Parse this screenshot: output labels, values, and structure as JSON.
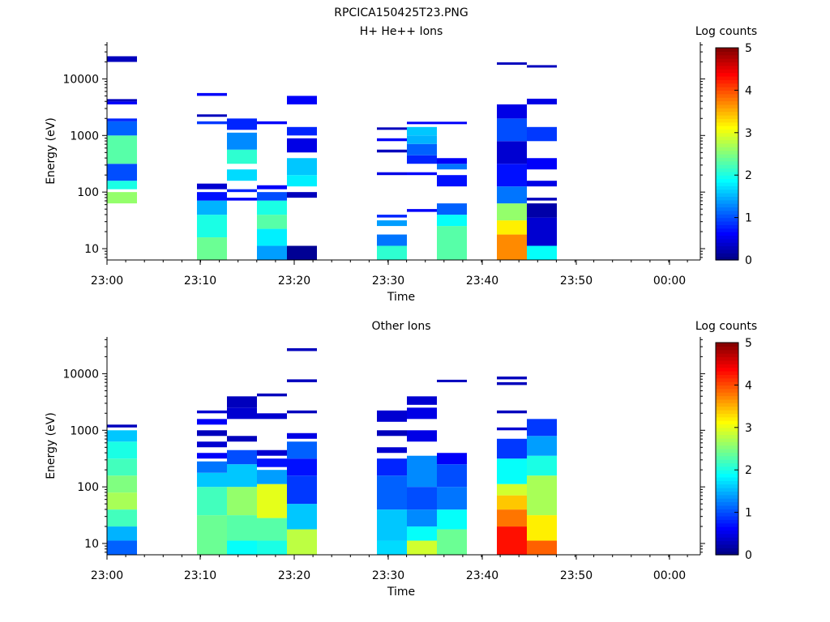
{
  "figure_title": "RPCICA150425T23.PNG",
  "chart_data": [
    {
      "type": "heatmap",
      "title": "H+ He++ Ions",
      "xlabel": "Time",
      "ylabel": "Energy (eV)",
      "x_ticks": [
        "23:00",
        "23:10",
        "23:20",
        "23:30",
        "23:40",
        "23:50",
        "00:00"
      ],
      "y_ticks": [
        "10",
        "100",
        "1000",
        "10000"
      ],
      "y_scale": "log",
      "colorbar": {
        "label": "Log counts",
        "range": [
          0,
          5
        ],
        "ticks": [
          "0",
          "1",
          "2",
          "3",
          "4",
          "5"
        ],
        "colormap": "jet"
      },
      "columns": [
        {
          "col": 0,
          "cells": [
            [
              1.8,
              2.0,
              2.6
            ],
            [
              2.05,
              2.2,
              2.0
            ],
            [
              2.2,
              2.5,
              1.0
            ],
            [
              2.5,
              3.0,
              2.3
            ],
            [
              3.0,
              3.25,
              1.1
            ],
            [
              3.25,
              3.3,
              0.8
            ],
            [
              3.55,
              3.6,
              0.6
            ],
            [
              3.6,
              3.6,
              0.3
            ],
            [
              4.3,
              4.4,
              0.3
            ]
          ]
        },
        {
          "col": 3,
          "cells": [
            [
              0.8,
              1.2,
              2.4
            ],
            [
              1.2,
              1.6,
              2.0
            ],
            [
              1.6,
              1.85,
              1.5
            ],
            [
              1.85,
              2.0,
              0.7
            ],
            [
              2.05,
              2.15,
              0.4
            ],
            [
              3.2,
              3.25,
              0.9
            ],
            [
              3.33,
              3.35,
              0.3
            ],
            [
              3.7,
              3.75,
              0.6
            ]
          ]
        },
        {
          "col": 4,
          "cells": [
            [
              1.85,
              1.9,
              0.6
            ],
            [
              2.0,
              2.05,
              0.8
            ],
            [
              2.2,
              2.4,
              1.7
            ],
            [
              2.5,
              2.75,
              2.1
            ],
            [
              2.75,
              3.05,
              1.3
            ],
            [
              3.1,
              3.3,
              0.8
            ]
          ]
        },
        {
          "col": 5,
          "cells": [
            [
              0.8,
              1.05,
              1.4
            ],
            [
              1.05,
              1.35,
              1.8
            ],
            [
              1.35,
              1.6,
              2.3
            ],
            [
              1.6,
              1.85,
              2.0
            ],
            [
              1.85,
              2.0,
              1.0
            ],
            [
              2.05,
              2.12,
              0.6
            ],
            [
              3.2,
              3.25,
              0.6
            ]
          ]
        },
        {
          "col": 6,
          "cells": [
            [
              0.8,
              1.05,
              0.1
            ],
            [
              1.9,
              2.0,
              0.3
            ],
            [
              2.1,
              2.3,
              1.8
            ],
            [
              2.3,
              2.6,
              1.6
            ],
            [
              2.7,
              2.95,
              0.5
            ],
            [
              3.0,
              3.15,
              0.8
            ],
            [
              3.55,
              3.7,
              0.6
            ]
          ]
        },
        {
          "col": 9,
          "cells": [
            [
              0.8,
              1.05,
              2.1
            ],
            [
              1.05,
              1.25,
              1.2
            ],
            [
              1.4,
              1.5,
              1.4
            ],
            [
              1.55,
              1.6,
              0.8
            ],
            [
              2.3,
              2.35,
              0.5
            ],
            [
              2.7,
              2.75,
              0.3
            ],
            [
              2.9,
              2.95,
              0.6
            ],
            [
              3.1,
              3.12,
              0.3
            ]
          ]
        },
        {
          "col": 10,
          "cells": [
            [
              1.65,
              1.7,
              0.6
            ],
            [
              2.3,
              2.35,
              0.6
            ],
            [
              2.5,
              2.65,
              0.8
            ],
            [
              2.65,
              2.85,
              1.1
            ],
            [
              2.85,
              3.0,
              1.5
            ],
            [
              3.0,
              3.15,
              1.6
            ],
            [
              3.2,
              3.22,
              0.6
            ]
          ]
        },
        {
          "col": 11,
          "cells": [
            [
              0.8,
              1.4,
              2.3
            ],
            [
              1.4,
              1.6,
              1.9
            ],
            [
              1.6,
              1.8,
              1.1
            ],
            [
              2.1,
              2.3,
              0.7
            ],
            [
              2.4,
              2.5,
              1.2
            ],
            [
              2.5,
              2.6,
              0.6
            ],
            [
              3.2,
              3.22,
              0.6
            ]
          ]
        },
        {
          "col": 13,
          "cells": [
            [
              0.8,
              1.25,
              3.7
            ],
            [
              1.25,
              1.5,
              3.2
            ],
            [
              1.5,
              1.8,
              2.6
            ],
            [
              1.8,
              2.1,
              1.2
            ],
            [
              2.1,
              2.5,
              0.7
            ],
            [
              2.5,
              2.9,
              0.4
            ],
            [
              2.9,
              3.3,
              1.0
            ],
            [
              3.3,
              3.55,
              0.5
            ],
            [
              4.25,
              4.27,
              0.3
            ]
          ]
        },
        {
          "col": 14,
          "cells": [
            [
              0.8,
              1.05,
              1.9
            ],
            [
              1.05,
              1.55,
              0.4
            ],
            [
              1.55,
              1.8,
              0.2
            ],
            [
              1.85,
              1.9,
              0.3
            ],
            [
              2.1,
              2.2,
              0.5
            ],
            [
              2.4,
              2.6,
              0.6
            ],
            [
              2.9,
              3.15,
              0.9
            ],
            [
              3.55,
              3.65,
              0.5
            ],
            [
              4.2,
              4.22,
              0.3
            ]
          ]
        }
      ]
    },
    {
      "type": "heatmap",
      "title": "Other Ions",
      "xlabel": "Time",
      "ylabel": "Energy (eV)",
      "x_ticks": [
        "23:00",
        "23:10",
        "23:20",
        "23:30",
        "23:40",
        "23:50",
        "00:00"
      ],
      "y_ticks": [
        "10",
        "100",
        "1000",
        "10000"
      ],
      "y_scale": "log",
      "colorbar": {
        "label": "Log counts",
        "range": [
          0,
          5
        ],
        "ticks": [
          "0",
          "1",
          "2",
          "3",
          "4",
          "5"
        ],
        "colormap": "jet"
      },
      "columns": [
        {
          "col": 0,
          "cells": [
            [
              0.8,
              1.05,
              1.1
            ],
            [
              1.05,
              1.3,
              1.5
            ],
            [
              1.3,
              1.6,
              2.2
            ],
            [
              1.6,
              1.9,
              2.7
            ],
            [
              1.9,
              2.2,
              2.5
            ],
            [
              2.2,
              2.5,
              2.2
            ],
            [
              2.5,
              2.8,
              2.0
            ],
            [
              2.8,
              3.0,
              1.6
            ],
            [
              3.05,
              3.1,
              0.3
            ]
          ]
        },
        {
          "col": 3,
          "cells": [
            [
              0.8,
              1.5,
              2.4
            ],
            [
              1.5,
              2.0,
              2.2
            ],
            [
              2.0,
              2.25,
              1.6
            ],
            [
              2.25,
              2.45,
              1.2
            ],
            [
              2.5,
              2.6,
              0.6
            ],
            [
              2.7,
              2.8,
              0.4
            ],
            [
              2.9,
              3.0,
              0.3
            ],
            [
              3.1,
              3.2,
              0.6
            ],
            [
              3.3,
              3.35,
              0.4
            ]
          ]
        },
        {
          "col": 4,
          "cells": [
            [
              0.8,
              1.05,
              1.9
            ],
            [
              1.05,
              1.5,
              2.3
            ],
            [
              1.5,
              2.0,
              2.6
            ],
            [
              2.0,
              2.4,
              1.6
            ],
            [
              2.4,
              2.65,
              1.0
            ],
            [
              2.8,
              2.9,
              0.3
            ],
            [
              3.2,
              3.4,
              0.4
            ],
            [
              3.4,
              3.6,
              0.3
            ]
          ]
        },
        {
          "col": 5,
          "cells": [
            [
              0.8,
              1.05,
              2.0
            ],
            [
              1.05,
              1.45,
              2.3
            ],
            [
              1.45,
              2.05,
              3.0
            ],
            [
              2.05,
              2.3,
              1.4
            ],
            [
              2.35,
              2.5,
              0.7
            ],
            [
              2.55,
              2.65,
              0.4
            ],
            [
              3.2,
              3.3,
              0.4
            ],
            [
              3.6,
              3.65,
              0.3
            ]
          ]
        },
        {
          "col": 6,
          "cells": [
            [
              0.8,
              1.25,
              2.8
            ],
            [
              1.25,
              1.7,
              1.6
            ],
            [
              1.7,
              2.2,
              0.9
            ],
            [
              2.2,
              2.5,
              0.7
            ],
            [
              2.5,
              2.8,
              1.1
            ],
            [
              2.85,
              2.95,
              0.5
            ],
            [
              3.3,
              3.35,
              0.3
            ],
            [
              3.85,
              3.9,
              0.3
            ],
            [
              4.4,
              4.45,
              0.3
            ]
          ]
        },
        {
          "col": 9,
          "cells": [
            [
              0.8,
              1.05,
              1.7
            ],
            [
              1.05,
              1.6,
              1.6
            ],
            [
              1.6,
              2.2,
              1.1
            ],
            [
              2.2,
              2.5,
              0.8
            ],
            [
              2.6,
              2.7,
              0.4
            ],
            [
              2.9,
              3.0,
              0.3
            ],
            [
              3.15,
              3.35,
              0.4
            ]
          ]
        },
        {
          "col": 10,
          "cells": [
            [
              0.8,
              1.05,
              2.9
            ],
            [
              1.05,
              1.3,
              1.9
            ],
            [
              1.3,
              1.6,
              1.3
            ],
            [
              1.6,
              2.0,
              1.0
            ],
            [
              2.0,
              2.55,
              1.3
            ],
            [
              2.8,
              3.0,
              0.5
            ],
            [
              3.2,
              3.4,
              0.5
            ],
            [
              3.45,
              3.6,
              0.4
            ]
          ]
        },
        {
          "col": 11,
          "cells": [
            [
              0.8,
              1.25,
              2.4
            ],
            [
              1.25,
              1.6,
              1.9
            ],
            [
              1.6,
              2.0,
              1.2
            ],
            [
              2.0,
              2.4,
              1.0
            ],
            [
              2.4,
              2.6,
              0.6
            ],
            [
              3.85,
              3.88,
              0.3
            ]
          ]
        },
        {
          "col": 13,
          "cells": [
            [
              0.8,
              1.3,
              4.3
            ],
            [
              1.3,
              1.6,
              3.8
            ],
            [
              1.6,
              1.85,
              3.4
            ],
            [
              1.85,
              2.05,
              2.9
            ],
            [
              2.05,
              2.5,
              1.9
            ],
            [
              2.5,
              2.85,
              0.9
            ],
            [
              3.0,
              3.05,
              0.4
            ],
            [
              3.3,
              3.35,
              0.3
            ],
            [
              3.8,
              3.85,
              0.3
            ],
            [
              3.9,
              3.95,
              0.3
            ]
          ]
        },
        {
          "col": 14,
          "cells": [
            [
              0.8,
              1.05,
              3.9
            ],
            [
              1.05,
              1.5,
              3.2
            ],
            [
              1.5,
              2.2,
              2.7
            ],
            [
              2.2,
              2.55,
              2.0
            ],
            [
              2.55,
              2.9,
              1.4
            ],
            [
              2.9,
              3.2,
              0.9
            ]
          ]
        }
      ]
    }
  ]
}
